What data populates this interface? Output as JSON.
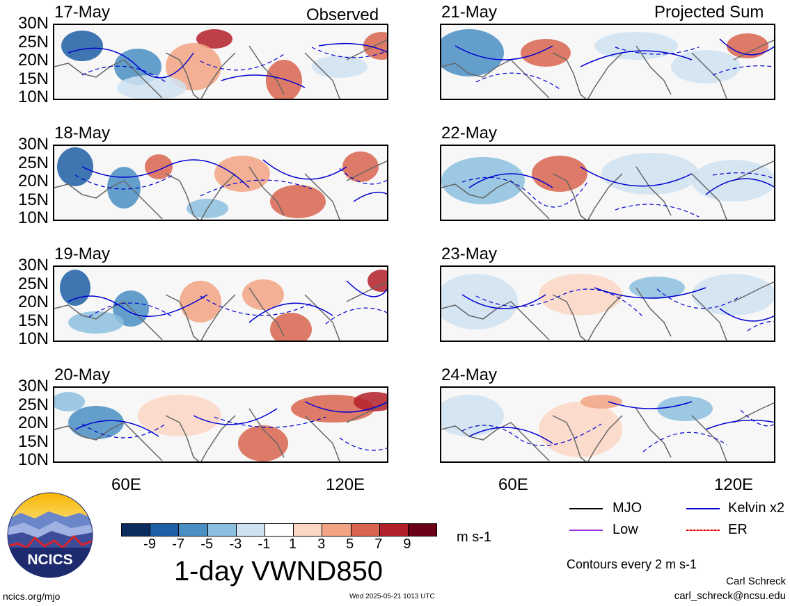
{
  "headers": {
    "left": "Observed",
    "right": "Projected Sum"
  },
  "latitude_labels": [
    "30N",
    "25N",
    "20N",
    "15N",
    "10N"
  ],
  "longitude_labels": [
    "60E",
    "120E"
  ],
  "panels": {
    "observed": [
      "17-May",
      "18-May",
      "19-May",
      "20-May"
    ],
    "projected": [
      "21-May",
      "22-May",
      "23-May",
      "24-May"
    ]
  },
  "colorbar": {
    "labels": [
      "-9",
      "-7",
      "-5",
      "-3",
      "-1",
      "1",
      "3",
      "5",
      "7",
      "9"
    ],
    "colors": [
      "#0b2c5e",
      "#1f5fa6",
      "#4a8fc4",
      "#8cbfdf",
      "#cfe2f1",
      "#ffffff",
      "#fcd7c4",
      "#f2a383",
      "#d8654f",
      "#b3202a",
      "#6b0016"
    ],
    "units": "m s-1"
  },
  "title": "1-day VWND850",
  "legend": {
    "items": [
      {
        "label": "MJO",
        "color": "#000000"
      },
      {
        "label": "Kelvin x2",
        "color": "#0000d0"
      },
      {
        "label": "Low",
        "color": "#9b30d9"
      },
      {
        "label": "ER",
        "color": "#e00000"
      }
    ],
    "contour_note": "Contours every 2 m s-1"
  },
  "footer": {
    "left": "ncics.org/mjo",
    "center": "Wed 2025-05-21 1013 UTC",
    "author": "Carl Schreck",
    "email": "carl_schreck@ncsu.edu"
  },
  "logo": {
    "text": "NCICS"
  }
}
